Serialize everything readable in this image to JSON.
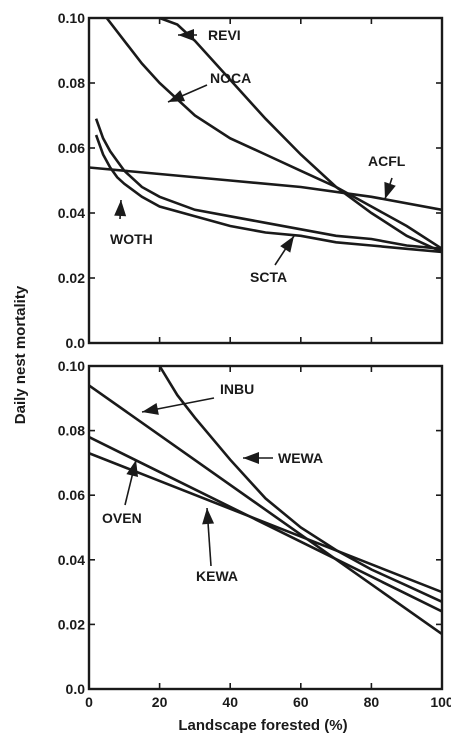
{
  "xlabel": "Landscape forested (%)",
  "ylabel": "Daily nest mortality",
  "chart_data": [
    {
      "type": "line",
      "panel": "top",
      "xlim": [
        0,
        100
      ],
      "ylim": [
        0,
        0.1
      ],
      "x_ticks": [
        "0",
        "20",
        "40",
        "60",
        "80",
        "100"
      ],
      "y_ticks": [
        "0.0",
        "0.02",
        "0.04",
        "0.06",
        "0.08",
        "0.10"
      ],
      "series": [
        {
          "name": "REVI",
          "x": [
            20,
            25,
            30,
            40,
            50,
            60,
            70,
            80,
            90,
            100
          ],
          "y": [
            0.1,
            0.098,
            0.093,
            0.081,
            0.069,
            0.058,
            0.048,
            0.04,
            0.033,
            0.028
          ]
        },
        {
          "name": "NOCA",
          "x": [
            5,
            10,
            15,
            20,
            30,
            40,
            50,
            60,
            70,
            80,
            90,
            100
          ],
          "y": [
            0.1,
            0.093,
            0.086,
            0.08,
            0.07,
            0.063,
            0.058,
            0.053,
            0.048,
            0.042,
            0.036,
            0.029
          ]
        },
        {
          "name": "ACFL",
          "x": [
            0,
            20,
            40,
            60,
            80,
            100
          ],
          "y": [
            0.054,
            0.052,
            0.05,
            0.048,
            0.045,
            0.041
          ]
        },
        {
          "name": "WOTH",
          "x": [
            2,
            4,
            6,
            8,
            10,
            15,
            20,
            30,
            40,
            50,
            60,
            70,
            80,
            90,
            100
          ],
          "y": [
            0.069,
            0.063,
            0.059,
            0.056,
            0.053,
            0.048,
            0.045,
            0.041,
            0.039,
            0.037,
            0.035,
            0.033,
            0.032,
            0.03,
            0.029
          ]
        },
        {
          "name": "SCTA",
          "x": [
            2,
            4,
            6,
            8,
            10,
            15,
            20,
            30,
            40,
            50,
            60,
            70,
            80,
            90,
            100
          ],
          "y": [
            0.064,
            0.058,
            0.054,
            0.051,
            0.049,
            0.045,
            0.042,
            0.039,
            0.036,
            0.034,
            0.033,
            0.031,
            0.03,
            0.029,
            0.028
          ]
        }
      ]
    },
    {
      "type": "line",
      "panel": "bottom",
      "xlim": [
        0,
        100
      ],
      "ylim": [
        0,
        0.1
      ],
      "x_ticks": [
        "0",
        "20",
        "40",
        "60",
        "80",
        "100"
      ],
      "y_ticks": [
        "0.0",
        "0.02",
        "0.04",
        "0.06",
        "0.08",
        "0.10"
      ],
      "series": [
        {
          "name": "INBU",
          "x": [
            0,
            100
          ],
          "y": [
            0.094,
            0.017
          ]
        },
        {
          "name": "WEWA",
          "x": [
            20,
            25,
            30,
            40,
            50,
            60,
            70,
            80,
            90,
            100
          ],
          "y": [
            0.1,
            0.091,
            0.084,
            0.071,
            0.059,
            0.05,
            0.043,
            0.037,
            0.032,
            0.027
          ]
        },
        {
          "name": "OVEN",
          "x": [
            0,
            100
          ],
          "y": [
            0.078,
            0.024
          ]
        },
        {
          "name": "KEWA",
          "x": [
            0,
            100
          ],
          "y": [
            0.073,
            0.03
          ]
        }
      ]
    }
  ]
}
